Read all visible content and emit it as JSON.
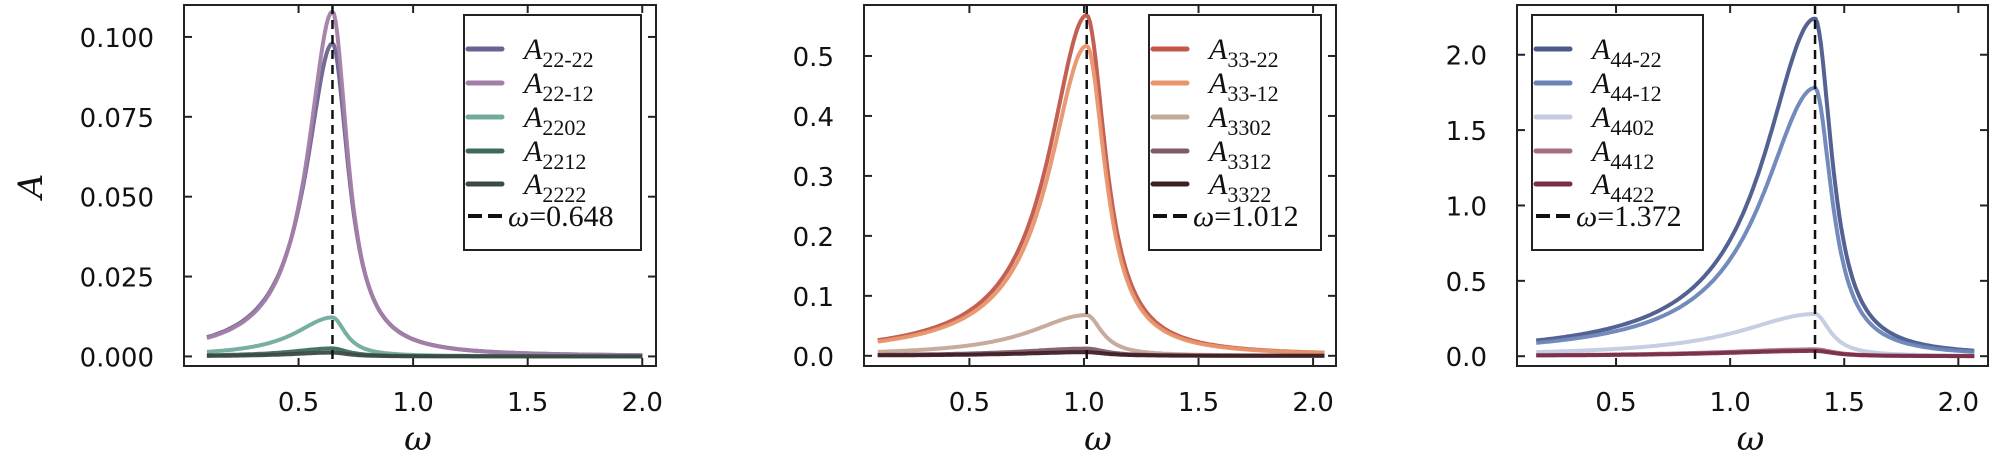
{
  "figure": {
    "ylabel": "A",
    "xlabel": "ω"
  },
  "chart_data": [
    {
      "type": "line",
      "title": "",
      "xlabel": "ω",
      "ylabel": "A",
      "xlim": [
        0.0,
        2.06
      ],
      "ylim": [
        -0.003,
        0.11
      ],
      "xticks": [
        0.5,
        1.0,
        1.5,
        2.0
      ],
      "xtick_labels": [
        "0.5",
        "1.0",
        "1.5",
        "2.0"
      ],
      "yticks": [
        0.0,
        0.025,
        0.05,
        0.075,
        0.1
      ],
      "ytick_labels": [
        "0.000",
        "0.025",
        "0.050",
        "0.075",
        "0.100"
      ],
      "grid": false,
      "legend_position": "upper right",
      "vline": {
        "x": 0.648,
        "label": "ω = 0.648",
        "value_text": "0.648",
        "style": "dashed",
        "color": "#111111"
      },
      "x_range": [
        0.1,
        2.0
      ],
      "series": [
        {
          "name": "A22-22",
          "base": "A",
          "sub": "22-22",
          "color": "#6a6291",
          "peak": 0.098,
          "peak_x": 0.648,
          "width_left": 0.14,
          "width_right": 0.085
        },
        {
          "name": "A22-12",
          "base": "A",
          "sub": "22-12",
          "color": "#a37fa8",
          "peak": 0.108,
          "peak_x": 0.648,
          "width_left": 0.13,
          "width_right": 0.08
        },
        {
          "name": "A2202",
          "base": "A",
          "sub": "2202",
          "color": "#72ab9e",
          "peak": 0.0122,
          "peak_x": 0.648,
          "width_left": 0.2,
          "width_right": 0.07
        },
        {
          "name": "A2212",
          "base": "A",
          "sub": "2212",
          "color": "#3e6a5c",
          "peak": 0.0025,
          "peak_x": 0.648,
          "width_left": 0.22,
          "width_right": 0.08
        },
        {
          "name": "A2222",
          "base": "A",
          "sub": "2222",
          "color": "#3b4a45",
          "peak": 0.0012,
          "peak_x": 0.648,
          "width_left": 0.22,
          "width_right": 0.08
        }
      ]
    },
    {
      "type": "line",
      "title": "",
      "xlabel": "ω",
      "ylabel": "",
      "xlim": [
        0.04,
        2.1
      ],
      "ylim": [
        -0.017,
        0.585
      ],
      "xticks": [
        0.5,
        1.0,
        1.5,
        2.0
      ],
      "xtick_labels": [
        "0.5",
        "1.0",
        "1.5",
        "2.0"
      ],
      "yticks": [
        0.0,
        0.1,
        0.2,
        0.3,
        0.4,
        0.5
      ],
      "ytick_labels": [
        "0.0",
        "0.1",
        "0.2",
        "0.3",
        "0.4",
        "0.5"
      ],
      "grid": false,
      "legend_position": "upper right",
      "vline": {
        "x": 1.012,
        "label": "ω = 1.012",
        "value_text": "1.012",
        "style": "dashed",
        "color": "#111111"
      },
      "x_range": [
        0.1,
        2.05
      ],
      "series": [
        {
          "name": "A33-22",
          "base": "A",
          "sub": "33-22",
          "color": "#c0574a",
          "peak": 0.568,
          "peak_x": 1.012,
          "width_left": 0.2,
          "width_right": 0.1
        },
        {
          "name": "A33-12",
          "base": "A",
          "sub": "33-12",
          "color": "#e8956c",
          "peak": 0.517,
          "peak_x": 1.012,
          "width_left": 0.2,
          "width_right": 0.1
        },
        {
          "name": "A3302",
          "base": "A",
          "sub": "3302",
          "color": "#c4a898",
          "peak": 0.068,
          "peak_x": 1.012,
          "width_left": 0.3,
          "width_right": 0.08
        },
        {
          "name": "A3312",
          "base": "A",
          "sub": "3312",
          "color": "#7e5c66",
          "peak": 0.012,
          "peak_x": 1.012,
          "width_left": 0.35,
          "width_right": 0.1
        },
        {
          "name": "A3322",
          "base": "A",
          "sub": "3322",
          "color": "#3e1f24",
          "peak": 0.006,
          "peak_x": 1.012,
          "width_left": 0.35,
          "width_right": 0.1
        }
      ]
    },
    {
      "type": "line",
      "title": "",
      "xlabel": "ω",
      "ylabel": "",
      "xlim": [
        0.066,
        2.13
      ],
      "ylim": [
        -0.065,
        2.33
      ],
      "xticks": [
        0.5,
        1.0,
        1.5,
        2.0
      ],
      "xtick_labels": [
        "0.5",
        "1.0",
        "1.5",
        "2.0"
      ],
      "yticks": [
        0.0,
        0.5,
        1.0,
        1.5,
        2.0
      ],
      "ytick_labels": [
        "0.0",
        "0.5",
        "1.0",
        "1.5",
        "2.0"
      ],
      "grid": false,
      "legend_position": "upper left",
      "vline": {
        "x": 1.372,
        "label": "ω = 1.372",
        "value_text": "1.372",
        "style": "dashed",
        "color": "#111111"
      },
      "x_range": [
        0.15,
        2.07
      ],
      "series": [
        {
          "name": "A44-22",
          "base": "A",
          "sub": "44-22",
          "color": "#4a5a8c",
          "peak": 2.24,
          "peak_x": 1.372,
          "width_left": 0.27,
          "width_right": 0.09
        },
        {
          "name": "A44-12",
          "base": "A",
          "sub": "44-12",
          "color": "#6a84b8",
          "peak": 1.78,
          "peak_x": 1.372,
          "width_left": 0.28,
          "width_right": 0.09
        },
        {
          "name": "A4402",
          "base": "A",
          "sub": "4402",
          "color": "#c2cbe0",
          "peak": 0.28,
          "peak_x": 1.372,
          "width_left": 0.4,
          "width_right": 0.08
        },
        {
          "name": "A4412",
          "base": "A",
          "sub": "4412",
          "color": "#a56c82",
          "peak": 0.045,
          "peak_x": 1.372,
          "width_left": 0.5,
          "width_right": 0.1
        },
        {
          "name": "A4422",
          "base": "A",
          "sub": "4422",
          "color": "#7a2e48",
          "peak": 0.035,
          "peak_x": 1.372,
          "width_left": 0.5,
          "width_right": 0.1
        }
      ]
    }
  ]
}
